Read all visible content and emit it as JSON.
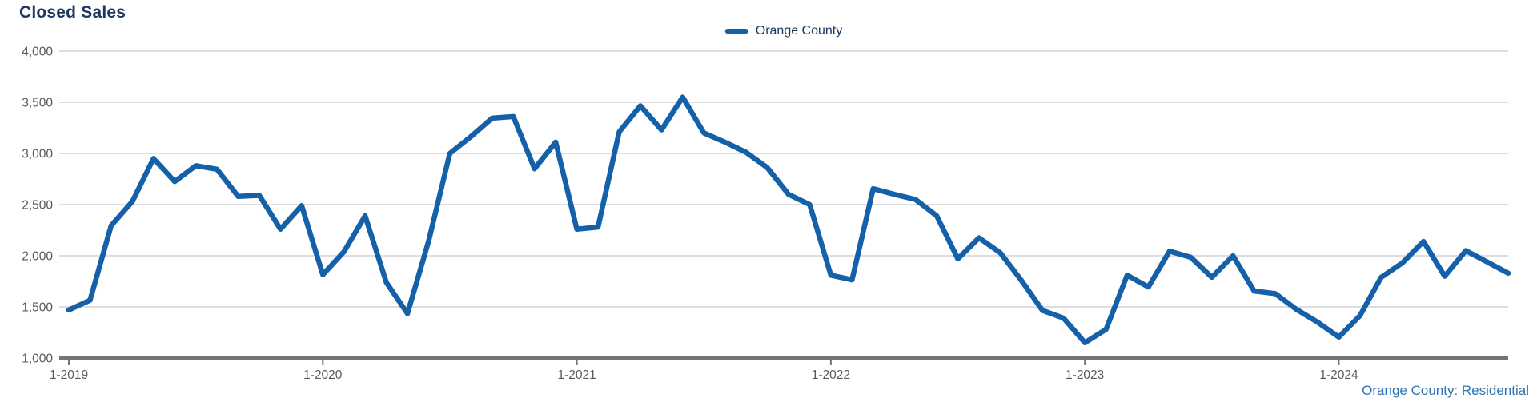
{
  "header": {
    "title": "Closed Sales"
  },
  "legend": {
    "label": "Orange County",
    "swatch_icon": "line-swatch-icon"
  },
  "footer": {
    "label": "Orange County: Residential"
  },
  "colors": {
    "series": "#1561A9",
    "title": "#1F3864",
    "legend_text": "#17375C",
    "footer": "#2E74B5",
    "tick_label": "#595959",
    "gridline": "#D4D4D4",
    "axis": "#757575",
    "background": "#FFFFFF"
  },
  "chart_data": {
    "type": "line",
    "title": "Closed Sales",
    "xlabel": "",
    "ylabel": "",
    "ylim": [
      1000,
      4000
    ],
    "y_ticks": [
      1000,
      1500,
      2000,
      2500,
      3000,
      3500,
      4000
    ],
    "y_tick_labels": [
      "1,000",
      "1,500",
      "2,000",
      "2,500",
      "3,000",
      "3,500",
      "4,000"
    ],
    "x_tick_labels": [
      "1-2019",
      "1-2020",
      "1-2021",
      "1-2022",
      "1-2023",
      "1-2024"
    ],
    "grid": true,
    "legend_position": "top-center",
    "x": [
      "1-2019",
      "2-2019",
      "3-2019",
      "4-2019",
      "5-2019",
      "6-2019",
      "7-2019",
      "8-2019",
      "9-2019",
      "10-2019",
      "11-2019",
      "12-2019",
      "1-2020",
      "2-2020",
      "3-2020",
      "4-2020",
      "5-2020",
      "6-2020",
      "7-2020",
      "8-2020",
      "9-2020",
      "10-2020",
      "11-2020",
      "12-2020",
      "1-2021",
      "2-2021",
      "3-2021",
      "4-2021",
      "5-2021",
      "6-2021",
      "7-2021",
      "8-2021",
      "9-2021",
      "10-2021",
      "11-2021",
      "12-2021",
      "1-2022",
      "2-2022",
      "3-2022",
      "4-2022",
      "5-2022",
      "6-2022",
      "7-2022",
      "8-2022",
      "9-2022",
      "10-2022",
      "11-2022",
      "12-2022",
      "1-2023",
      "2-2023",
      "3-2023",
      "4-2023",
      "5-2023",
      "6-2023",
      "7-2023",
      "8-2023",
      "9-2023",
      "10-2023",
      "11-2023",
      "12-2023",
      "1-2024",
      "2-2024",
      "3-2024",
      "4-2024",
      "5-2024",
      "6-2024",
      "7-2024",
      "8-2024",
      "9-2024"
    ],
    "series": [
      {
        "name": "Orange County",
        "values": [
          1470,
          1565,
          2295,
          2530,
          2950,
          2725,
          2880,
          2845,
          2580,
          2590,
          2260,
          2490,
          1815,
          2040,
          2390,
          1740,
          1435,
          2145,
          3000,
          3165,
          3345,
          3360,
          2850,
          3110,
          2260,
          2280,
          3210,
          3465,
          3230,
          3550,
          3200,
          3110,
          3010,
          2860,
          2600,
          2500,
          1810,
          1765,
          2655,
          2600,
          2550,
          2390,
          1970,
          2175,
          2030,
          1760,
          1465,
          1390,
          1150,
          1280,
          1810,
          1695,
          2045,
          1985,
          1790,
          2000,
          1655,
          1630,
          1475,
          1350,
          1205,
          1415,
          1790,
          1930,
          2140,
          1800,
          2050,
          1940,
          1830
        ]
      }
    ]
  }
}
